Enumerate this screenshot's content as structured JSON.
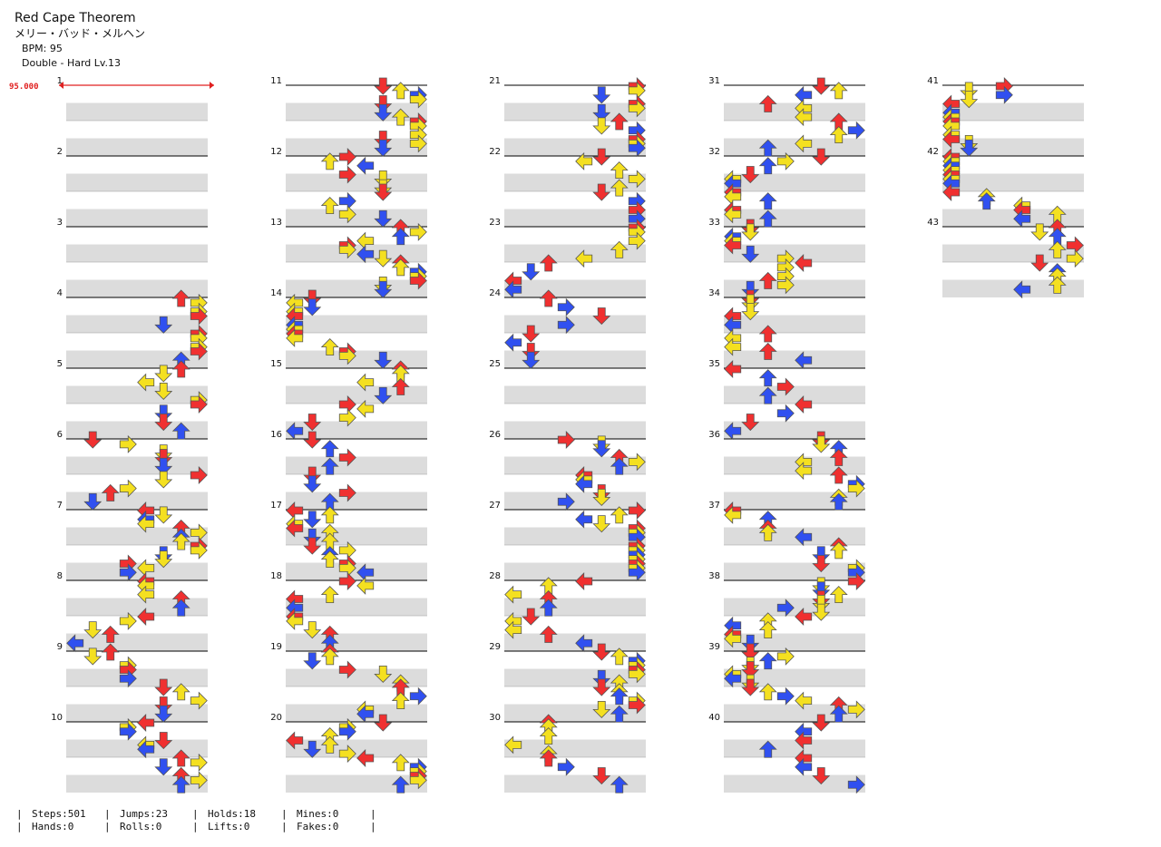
{
  "header": {
    "title": "Red Cape Theorem",
    "artist": "メリー・バッド・メルヘン",
    "bpm": "BPM: 95",
    "difficulty": "Double - Hard Lv.13"
  },
  "bpm_marker": "95.000",
  "measures": [
    "1",
    "2",
    "3",
    "4",
    "5",
    "6",
    "7",
    "8",
    "9",
    "10",
    "11",
    "12",
    "13",
    "14",
    "15",
    "16",
    "17",
    "18",
    "19",
    "20",
    "21",
    "22",
    "23",
    "24",
    "25",
    "26",
    "27",
    "28",
    "29",
    "30",
    "31",
    "32",
    "33",
    "34",
    "35",
    "36",
    "37",
    "38",
    "39",
    "40",
    "41",
    "42",
    "43"
  ],
  "stats": [
    [
      "Steps:501",
      "Hands:0"
    ],
    [
      "Jumps:23",
      "Rolls:0"
    ],
    [
      "Holds:18",
      "Lifts:0"
    ],
    [
      "Mines:0",
      "Fakes:0"
    ]
  ]
}
